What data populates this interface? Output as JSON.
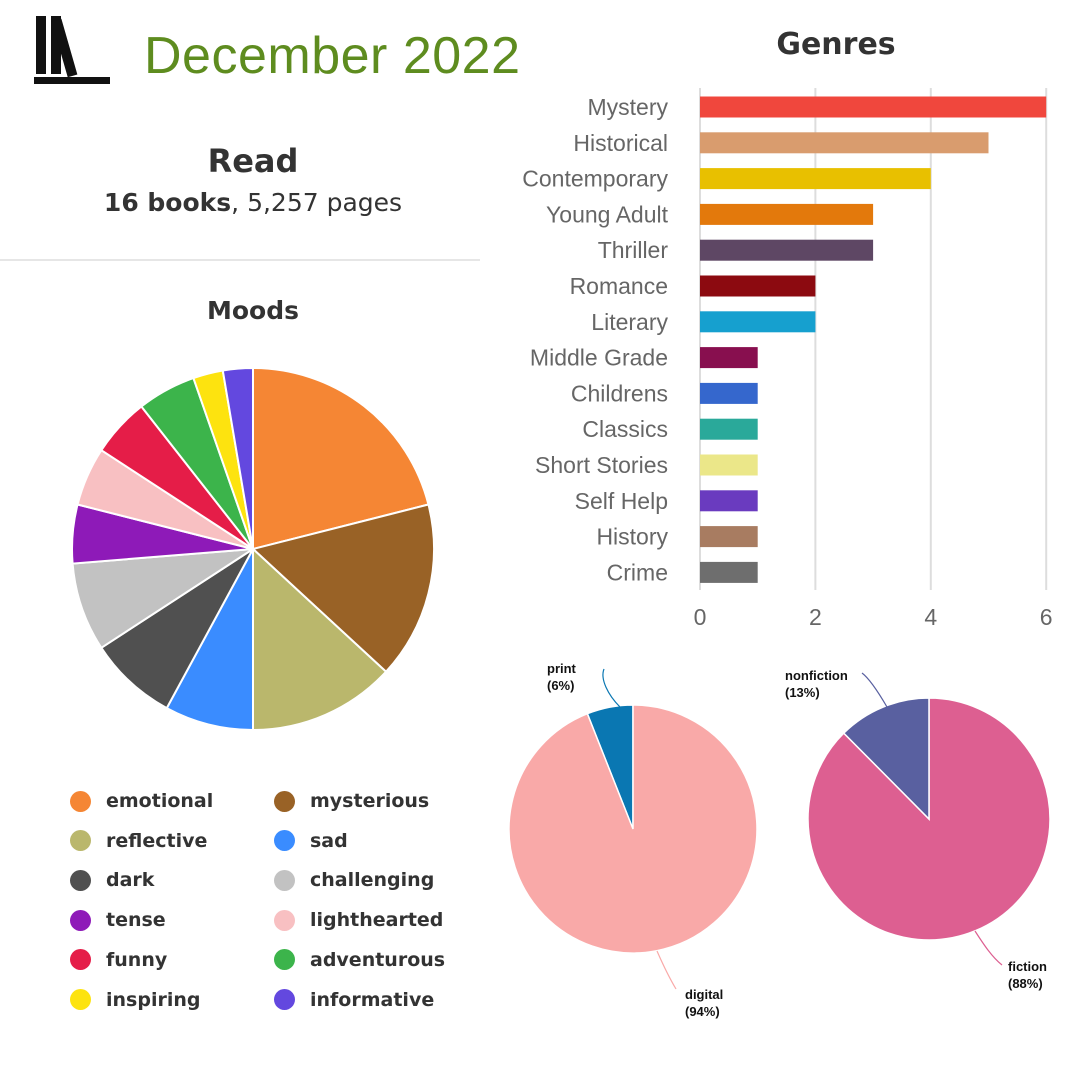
{
  "header": {
    "logo_icon": "books-shelf-icon",
    "month": "December 2022"
  },
  "read": {
    "heading": "Read",
    "books_text": "16 books",
    "separator": ", ",
    "pages_text": "5,257 pages"
  },
  "moods": {
    "title": "Moods"
  },
  "chart_data": [
    {
      "type": "pie",
      "title": "Moods",
      "legend": "bottom",
      "slices": [
        {
          "label": "emotional",
          "value": 20.5,
          "color": "#f58634"
        },
        {
          "label": "mysterious",
          "value": 15.4,
          "color": "#996226"
        },
        {
          "label": "reflective",
          "value": 12.8,
          "color": "#bab76c"
        },
        {
          "label": "sad",
          "value": 7.7,
          "color": "#3a8cff"
        },
        {
          "label": "dark",
          "value": 7.7,
          "color": "#505050"
        },
        {
          "label": "challenging",
          "value": 7.7,
          "color": "#c2c2c2"
        },
        {
          "label": "tense",
          "value": 5.1,
          "color": "#8e1ab8"
        },
        {
          "label": "lighthearted",
          "value": 5.1,
          "color": "#f8c0c2"
        },
        {
          "label": "funny",
          "value": 5.1,
          "color": "#e51d48"
        },
        {
          "label": "adventurous",
          "value": 5.1,
          "color": "#3cb44b"
        },
        {
          "label": "inspiring",
          "value": 2.6,
          "color": "#fde30f"
        },
        {
          "label": "informative",
          "value": 2.6,
          "color": "#6348df"
        }
      ]
    },
    {
      "type": "bar",
      "orientation": "horizontal",
      "title": "Genres",
      "xlim": [
        0,
        6
      ],
      "xticks": [
        "0",
        "2",
        "4",
        "6"
      ],
      "grid": true,
      "categories": [
        "Mystery",
        "Historical",
        "Contemporary",
        "Young Adult",
        "Thriller",
        "Romance",
        "Literary",
        "Middle Grade",
        "Childrens",
        "Classics",
        "Short Stories",
        "Self Help",
        "History",
        "Crime"
      ],
      "values": [
        6,
        5,
        4,
        3,
        3,
        2,
        2,
        1,
        1,
        1,
        1,
        1,
        1,
        1
      ],
      "colors": [
        "#f0473d",
        "#d99c6e",
        "#e8c000",
        "#e3790c",
        "#5e4764",
        "#8c0a10",
        "#16a0cf",
        "#880f4f",
        "#3567cd",
        "#2aa99a",
        "#ebe789",
        "#6a3bbf",
        "#a87c61",
        "#6e6e6e"
      ]
    },
    {
      "type": "pie",
      "slices": [
        {
          "label": "print",
          "pct_label": "(6%)",
          "value": 6,
          "color": "#0a77b2"
        },
        {
          "label": "digital",
          "pct_label": "(94%)",
          "value": 94,
          "color": "#f9a9a8"
        }
      ]
    },
    {
      "type": "pie",
      "slices": [
        {
          "label": "fiction",
          "pct_label": "(88%)",
          "value": 88,
          "color": "#dd5f91"
        },
        {
          "label": "nonfiction",
          "pct_label": "(13%)",
          "value": 12.5,
          "color": "#5960a0"
        }
      ]
    }
  ]
}
